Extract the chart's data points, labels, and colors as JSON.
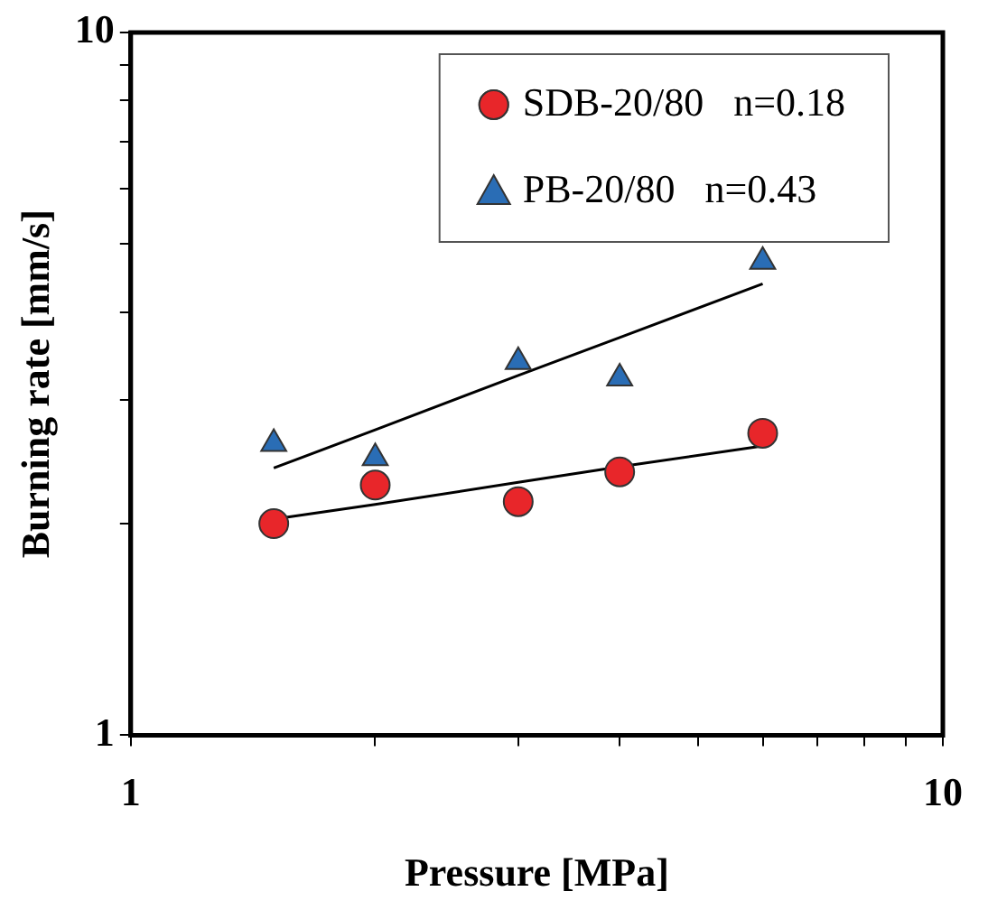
{
  "chart_data": {
    "type": "scatter",
    "xlabel": "Pressure [MPa]",
    "ylabel": "Burning rate [mm/s]",
    "log": "xy",
    "grid": false,
    "legend": "top right",
    "x": [
      1.5,
      2,
      3,
      4,
      6
    ],
    "xlim": [
      1,
      10
    ],
    "xticks": [
      1,
      {
        "value": 2,
        "label": null
      },
      {
        "value": 3,
        "label": null
      },
      {
        "value": 4,
        "label": null
      },
      {
        "value": 5,
        "label": null
      },
      {
        "value": 6,
        "label": null
      },
      {
        "value": 7,
        "label": null
      },
      {
        "value": 8,
        "label": null
      },
      {
        "value": 9,
        "label": null
      },
      10
    ],
    "ylim": [
      1,
      10
    ],
    "yticks": [
      1,
      {
        "value": 2,
        "label": null
      },
      {
        "value": 3,
        "label": null
      },
      {
        "value": 4,
        "label": null
      },
      {
        "value": 5,
        "label": null
      },
      {
        "value": 6,
        "label": null
      },
      {
        "value": 7,
        "label": null
      },
      {
        "value": 8,
        "label": null
      },
      {
        "value": 9,
        "label": null
      },
      10
    ],
    "series": [
      {
        "name": "SDB-20/80   n=0.18",
        "color": "#e8262a",
        "marker": "circle",
        "values": [
          2.0,
          2.27,
          2.15,
          2.37,
          2.69
        ]
      },
      {
        "name": "PB-20/80   n=0.43",
        "color": "#2a6db5",
        "marker": "triangle",
        "values": [
          2.6,
          2.48,
          3.4,
          3.22,
          4.72
        ]
      },
      {
        "type": "line",
        "color": "#000000",
        "marker": "none",
        "values": [
          2.03,
          2.13,
          2.29,
          2.41,
          2.58
        ]
      },
      {
        "type": "line",
        "color": "#000000",
        "marker": "none",
        "values": [
          2.4,
          2.72,
          3.25,
          3.68,
          4.39
        ]
      }
    ]
  }
}
